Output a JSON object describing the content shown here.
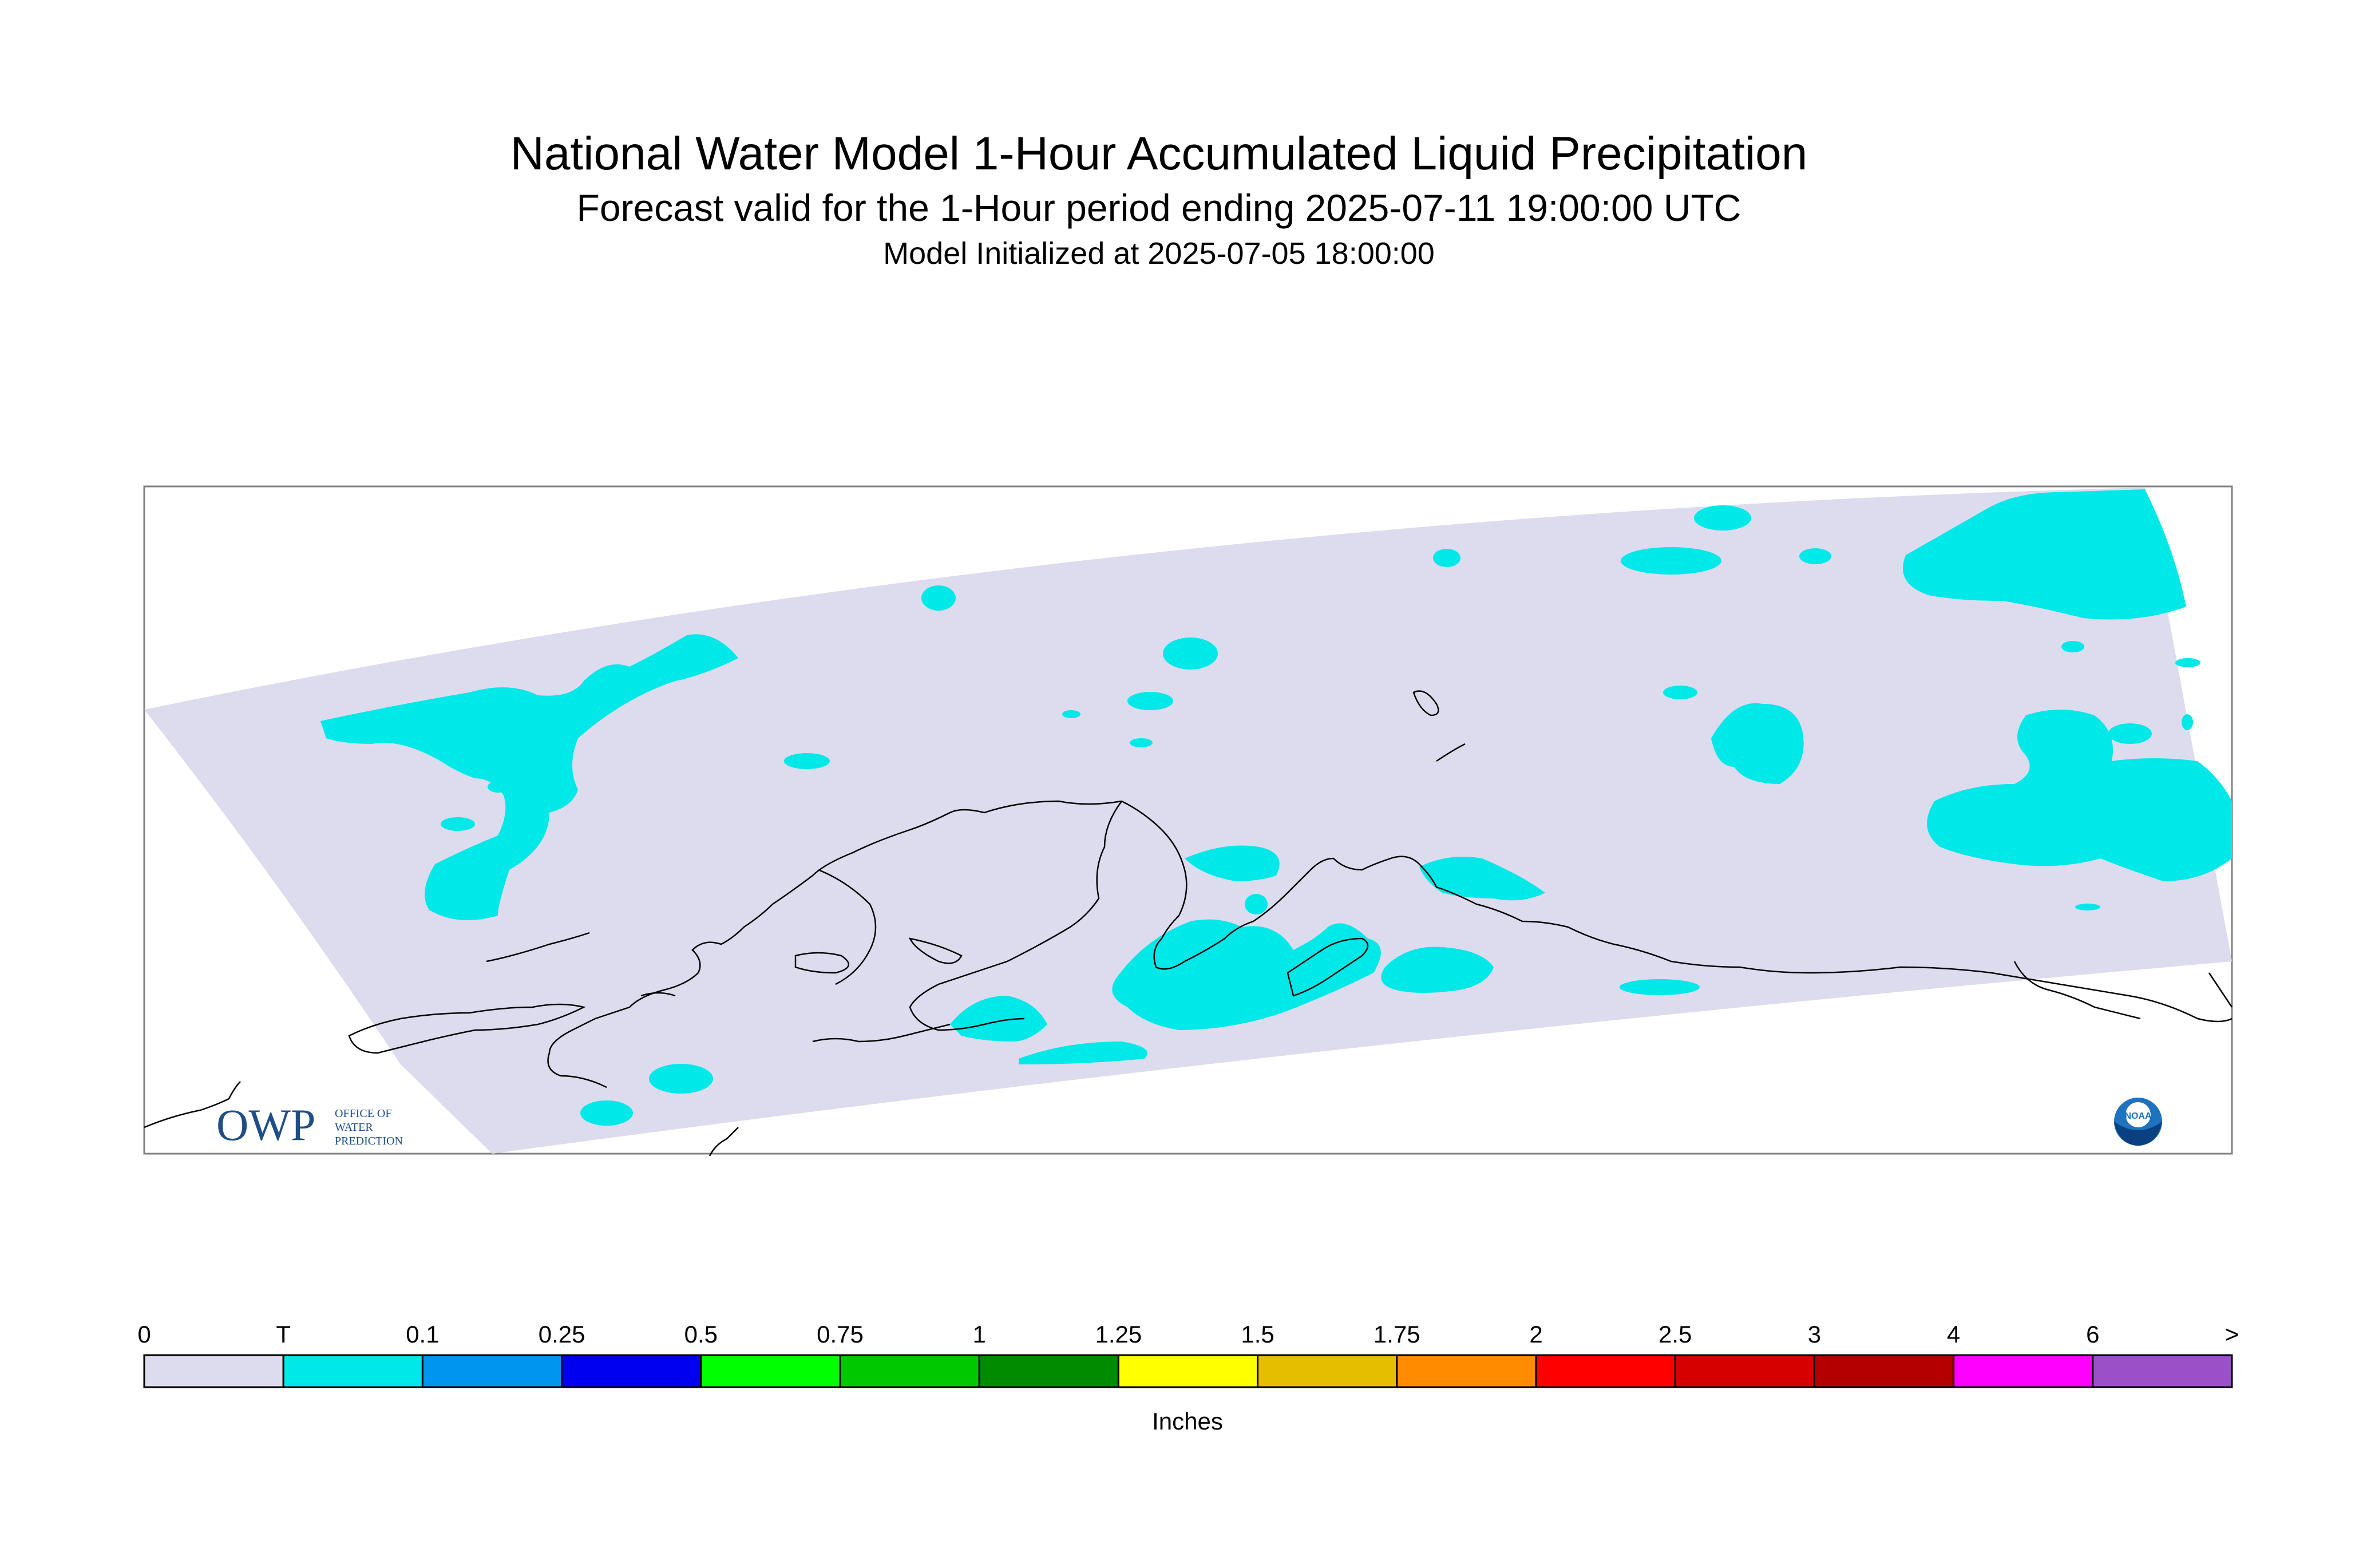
{
  "header": {
    "title": "National Water Model 1-Hour Accumulated Liquid Precipitation",
    "subtitle": "Forecast valid for the 1-Hour period ending 2025-07-11 19:00:00 UTC",
    "init_line": "Model Initialized at 2025-07-05 18:00:00"
  },
  "map": {
    "region": "Alaska",
    "domain_fill_color": "#dcdcee",
    "precip_color_trace": "#00e8e8",
    "coastline_color": "#000000"
  },
  "logos": {
    "owp_text": "OWP",
    "owp_subtext": [
      "OFFICE OF",
      "WATER",
      "PREDICTION"
    ],
    "noaa_text": "NOAA"
  },
  "colorbar": {
    "labels": [
      "0",
      "T",
      "0.1",
      "0.25",
      "0.5",
      "0.75",
      "1",
      "1.25",
      "1.5",
      "1.75",
      "2",
      "2.5",
      "3",
      "4",
      "6",
      ">"
    ],
    "colors": [
      "#dcdcee",
      "#00e8e8",
      "#0096f0",
      "#0000f0",
      "#00ff00",
      "#00c800",
      "#008c00",
      "#ffff00",
      "#e6be00",
      "#ff8c00",
      "#ff0000",
      "#d70000",
      "#b40000",
      "#ff00ff",
      "#9b50c8"
    ],
    "units": "Inches"
  }
}
